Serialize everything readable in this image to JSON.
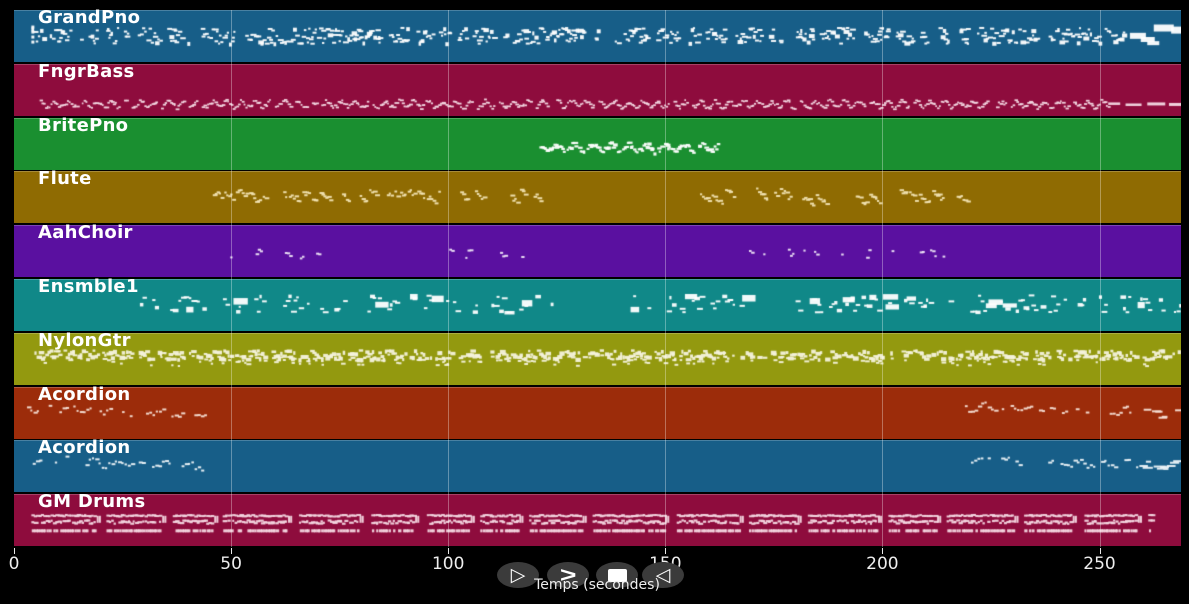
{
  "figure": {
    "background": "#000000",
    "grid_color": "rgba(255,255,255,0.33)"
  },
  "chart_data": {
    "type": "midi-piano-roll",
    "xlabel": "Temps (secondes)",
    "x_ticks": [
      0,
      50,
      100,
      150,
      200,
      250
    ],
    "x_range_seconds": [
      0,
      269
    ],
    "tracks": [
      {
        "name": "GrandPno",
        "color": "#175e88",
        "note_color": "#ffffff",
        "style": "piano",
        "segments": [
          [
            4,
            256
          ]
        ],
        "tail_blocks": true
      },
      {
        "name": "FngrBass",
        "color": "#8e0c3d",
        "note_color": "#f6dce6",
        "style": "bass-wave",
        "segments": [
          [
            5,
            252
          ]
        ],
        "tail_dashes": true
      },
      {
        "name": "BritePno",
        "color": "#1a8f30",
        "note_color": "#ffffff",
        "style": "melody-wave",
        "segments": [
          [
            121,
            162
          ]
        ]
      },
      {
        "name": "Flute",
        "color": "#8f6b02",
        "note_color": "#f2e4b4",
        "style": "sparse-runs",
        "segments": [
          [
            43,
            58
          ],
          [
            62,
            98
          ],
          [
            101,
            122
          ],
          [
            158,
            220
          ]
        ]
      },
      {
        "name": "AahChoir",
        "color": "#5a10a0",
        "note_color": "#efe7f7",
        "style": "sparse-pairs",
        "segments": [
          [
            47,
            75
          ],
          [
            95,
            122
          ],
          [
            165,
            218
          ]
        ]
      },
      {
        "name": "Ensmble1",
        "color": "#108888",
        "note_color": "#ffffff",
        "style": "mixed-blocks",
        "segments": [
          [
            29,
            125
          ],
          [
            142,
            168
          ],
          [
            180,
            269
          ]
        ]
      },
      {
        "name": "NylonGtr",
        "color": "#93990f",
        "note_color": "#f4f2dc",
        "style": "strum-dense",
        "segments": [
          [
            4,
            268
          ]
        ]
      },
      {
        "name": "Acordion",
        "color": "#9c2c0a",
        "note_color": "#f6e0d6",
        "style": "acc-wave",
        "segments": [
          [
            3,
            44
          ],
          [
            219,
            268
          ]
        ]
      },
      {
        "name": "Acordion",
        "color": "#175e88",
        "note_color": "#eef4f8",
        "style": "acc-wave",
        "segments": [
          [
            3,
            44
          ],
          [
            219,
            268
          ]
        ]
      },
      {
        "name": "GM Drums",
        "color": "#8e0c3d",
        "note_color": "#f4d8e2",
        "style": "drums",
        "segments": [
          [
            4,
            262
          ]
        ]
      }
    ]
  },
  "controls": {
    "play_glyph": "▷",
    "fast_forward_glyph": ">",
    "stop_glyph": "stop-square",
    "rewind_glyph": "◁"
  }
}
